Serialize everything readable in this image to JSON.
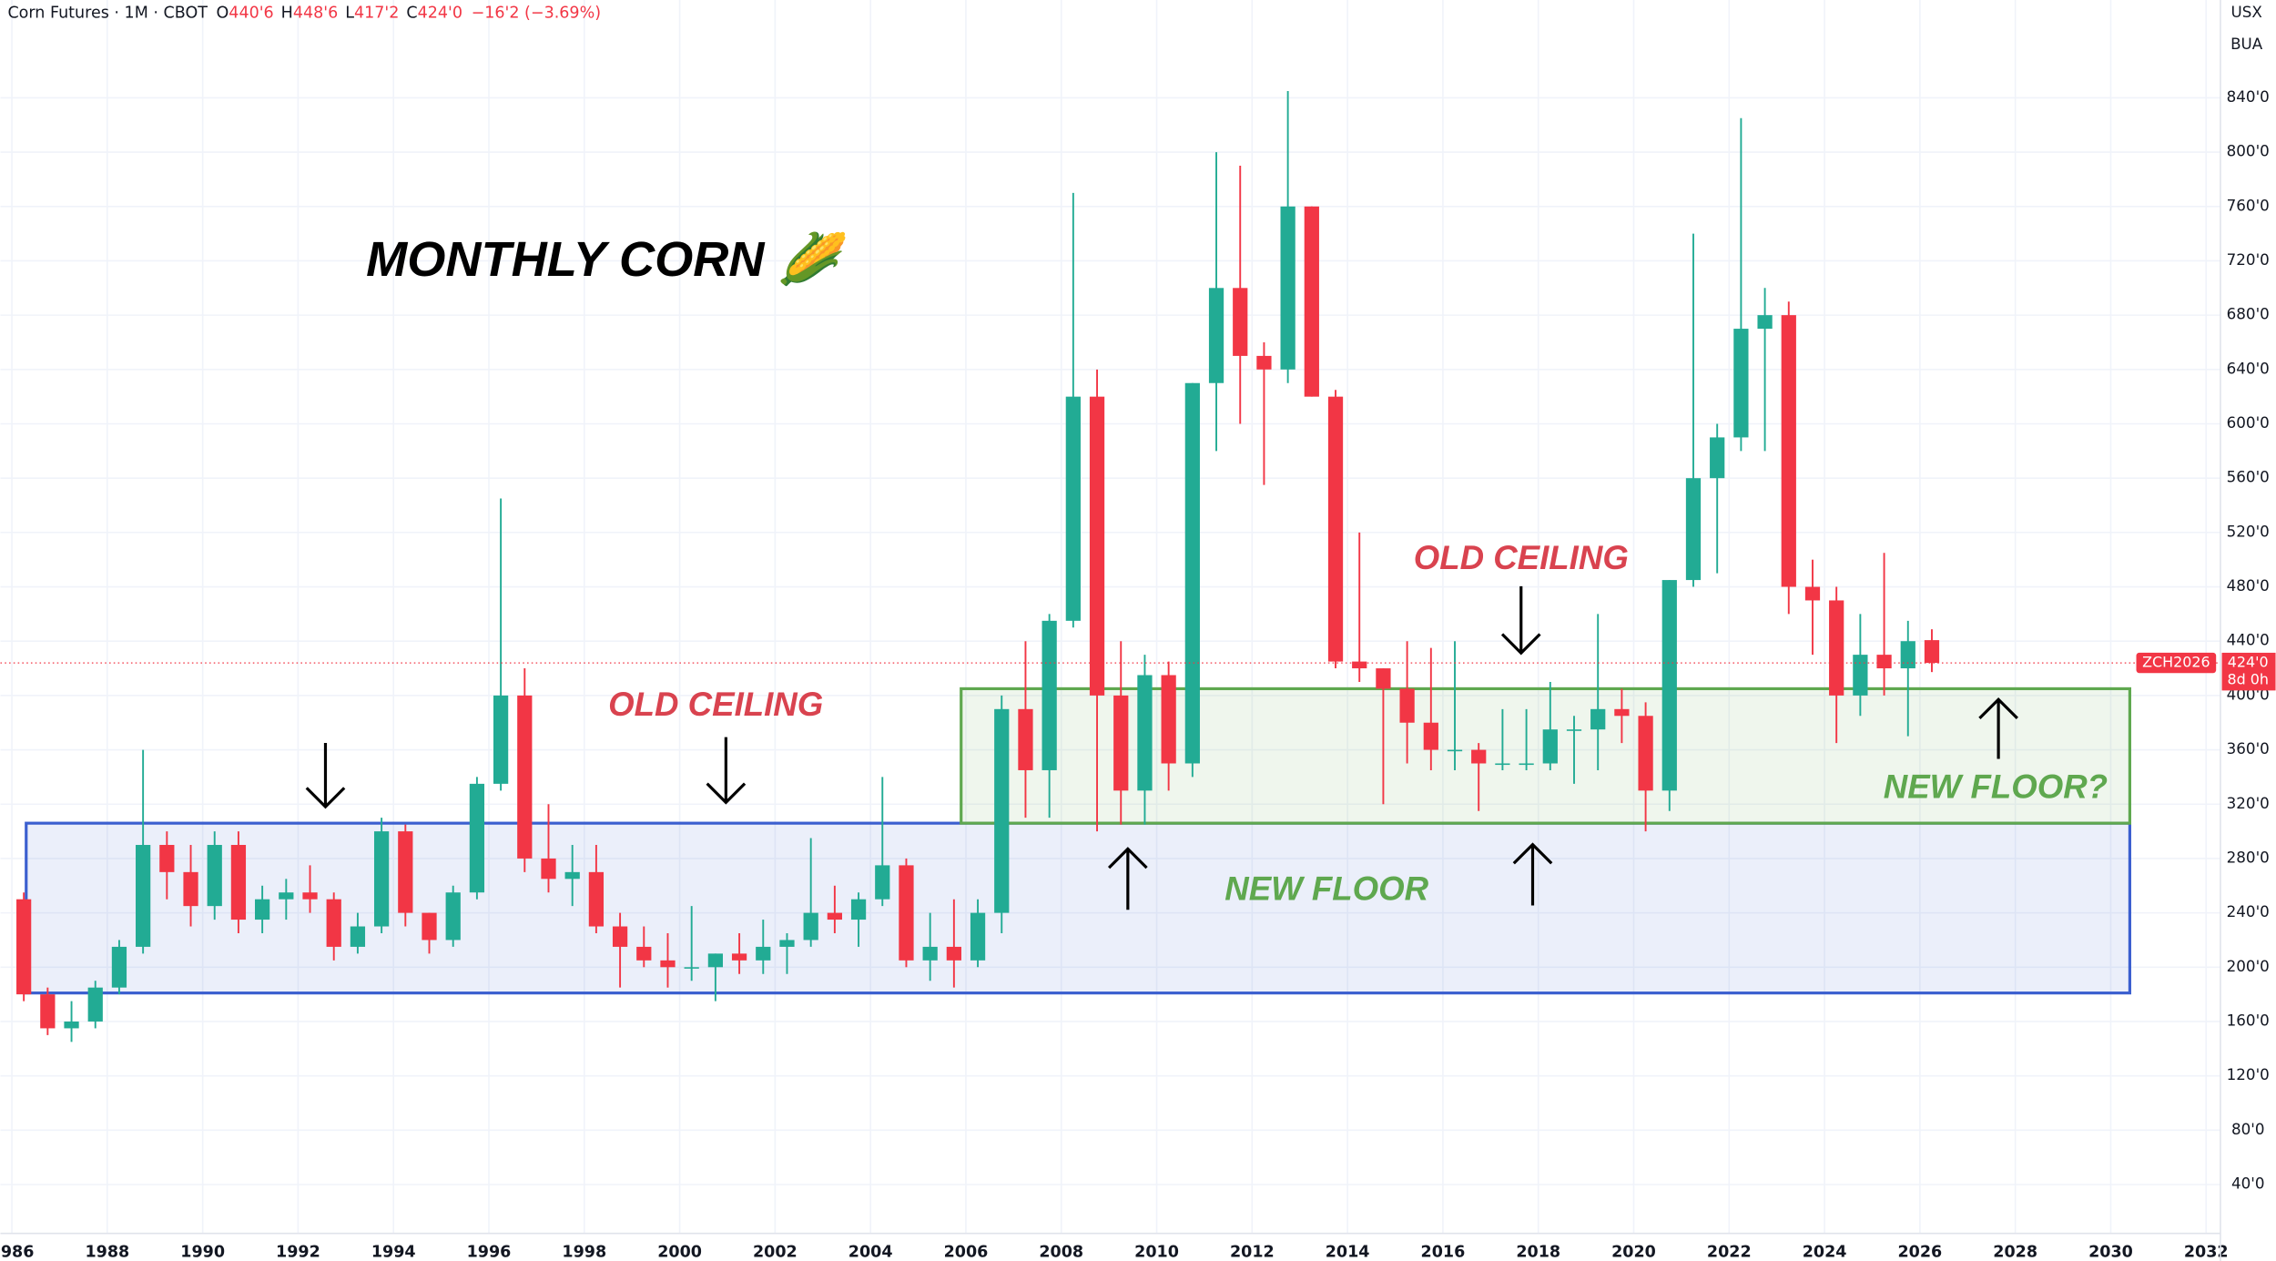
{
  "chart_data": {
    "type": "candlestick",
    "symbol": "Corn Futures · 1M · CBOT",
    "ohlc_header": [
      {
        "key": "O",
        "value": "440'6"
      },
      {
        "key": "H",
        "value": "448'6"
      },
      {
        "key": "L",
        "value": "417'2"
      },
      {
        "key": "C",
        "value": "424'0"
      }
    ],
    "change": "−16'2 (−3.69%)",
    "currency": "USX",
    "unit": "BUA",
    "title": "MONTHLY CORN 🌽",
    "price_tag": {
      "symbol": "ZCH2026",
      "price": "424'0",
      "countdown": "8d 0h"
    },
    "colors": {
      "up": "#22ab94",
      "down": "#f23645"
    },
    "x": [
      1986,
      1986.5,
      1987,
      1987.5,
      1988,
      1988.5,
      1989,
      1989.5,
      1990,
      1990.5,
      1991,
      1991.5,
      1992,
      1992.5,
      1993,
      1993.5,
      1994,
      1994.5,
      1995,
      1995.5,
      1996,
      1996.5,
      1997,
      1997.5,
      1998,
      1998.5,
      1999,
      1999.5,
      2000,
      2000.5,
      2001,
      2001.5,
      2002,
      2002.5,
      2003,
      2003.5,
      2004,
      2004.5,
      2005,
      2005.5,
      2006,
      2006.5,
      2007,
      2007.5,
      2008,
      2008.5,
      2009,
      2009.5,
      2010,
      2010.5,
      2011,
      2011.5,
      2012,
      2012.5,
      2013,
      2013.5,
      2014,
      2014.5,
      2015,
      2015.5,
      2016,
      2016.5,
      2017,
      2017.5,
      2018,
      2018.5,
      2019,
      2019.5,
      2020,
      2020.5,
      2021,
      2021.5,
      2022,
      2022.5,
      2023,
      2023.5,
      2024,
      2024.5,
      2025,
      2025.5,
      2026
    ],
    "open": [
      250,
      180,
      155,
      160,
      185,
      215,
      290,
      270,
      245,
      290,
      235,
      250,
      255,
      250,
      215,
      230,
      300,
      240,
      220,
      255,
      335,
      400,
      280,
      265,
      270,
      230,
      215,
      205,
      200,
      200,
      210,
      205,
      215,
      220,
      240,
      235,
      250,
      275,
      205,
      215,
      205,
      240,
      390,
      345,
      455,
      620,
      400,
      330,
      415,
      350,
      630,
      700,
      650,
      640,
      760,
      620,
      425,
      420,
      405,
      380,
      360,
      360,
      350,
      350,
      350,
      375,
      375,
      390,
      385,
      330,
      485,
      560,
      590,
      670,
      680,
      480,
      470,
      400,
      430,
      420,
      440.75
    ],
    "high": [
      255,
      185,
      175,
      190,
      220,
      360,
      300,
      290,
      300,
      300,
      260,
      265,
      275,
      255,
      240,
      310,
      305,
      240,
      260,
      340,
      545,
      420,
      320,
      290,
      290,
      240,
      230,
      225,
      245,
      210,
      225,
      235,
      225,
      295,
      260,
      255,
      340,
      280,
      240,
      250,
      250,
      400,
      440,
      460,
      770,
      640,
      440,
      430,
      425,
      630,
      800,
      790,
      660,
      845,
      760,
      625,
      520,
      420,
      440,
      435,
      440,
      365,
      390,
      390,
      410,
      385,
      460,
      405,
      395,
      485,
      740,
      600,
      825,
      700,
      690,
      500,
      480,
      460,
      505,
      455,
      448.75
    ],
    "low": [
      175,
      150,
      145,
      155,
      180,
      210,
      250,
      230,
      235,
      225,
      225,
      235,
      240,
      205,
      210,
      225,
      230,
      210,
      215,
      250,
      330,
      270,
      255,
      245,
      225,
      185,
      200,
      185,
      190,
      175,
      195,
      195,
      195,
      215,
      225,
      215,
      245,
      200,
      190,
      185,
      200,
      225,
      310,
      310,
      450,
      300,
      305,
      305,
      330,
      340,
      580,
      600,
      555,
      630,
      620,
      420,
      410,
      320,
      350,
      345,
      345,
      315,
      345,
      345,
      345,
      335,
      345,
      365,
      300,
      315,
      480,
      490,
      580,
      580,
      460,
      430,
      365,
      385,
      400,
      370,
      417.25
    ],
    "close": [
      180,
      155,
      160,
      185,
      215,
      290,
      270,
      245,
      290,
      235,
      250,
      255,
      250,
      215,
      230,
      300,
      240,
      220,
      255,
      335,
      400,
      280,
      265,
      270,
      230,
      215,
      205,
      200,
      200,
      210,
      205,
      215,
      220,
      240,
      235,
      250,
      275,
      205,
      215,
      205,
      240,
      390,
      345,
      455,
      620,
      400,
      330,
      415,
      350,
      630,
      700,
      650,
      640,
      760,
      620,
      425,
      420,
      405,
      380,
      360,
      360,
      350,
      350,
      350,
      375,
      375,
      390,
      385,
      330,
      485,
      560,
      590,
      670,
      680,
      480,
      470,
      400,
      430,
      420,
      440,
      424
    ],
    "xlim": [
      1985.76,
      2032.3
    ],
    "ylim": [
      4,
      912
    ],
    "xticks": [
      1986,
      1988,
      1990,
      1992,
      1994,
      1996,
      1998,
      2000,
      2002,
      2004,
      2006,
      2008,
      2010,
      2012,
      2014,
      2016,
      2018,
      2020,
      2022,
      2024,
      2026,
      2028,
      2030,
      2032
    ],
    "yticks": [
      {
        "value": 40,
        "label": "40'0"
      },
      {
        "value": 80,
        "label": "80'0"
      },
      {
        "value": 120,
        "label": "120'0"
      },
      {
        "value": 160,
        "label": "160'0"
      },
      {
        "value": 200,
        "label": "200'0"
      },
      {
        "value": 240,
        "label": "240'0"
      },
      {
        "value": 280,
        "label": "280'0"
      },
      {
        "value": 320,
        "label": "320'0"
      },
      {
        "value": 360,
        "label": "360'0"
      },
      {
        "value": 400,
        "label": "400'0"
      },
      {
        "value": 440,
        "label": "440'0"
      },
      {
        "value": 480,
        "label": "480'0"
      },
      {
        "value": 520,
        "label": "520'0"
      },
      {
        "value": 560,
        "label": "560'0"
      },
      {
        "value": 600,
        "label": "600'0"
      },
      {
        "value": 640,
        "label": "640'0"
      },
      {
        "value": 680,
        "label": "680'0"
      },
      {
        "value": 720,
        "label": "720'0"
      },
      {
        "value": 760,
        "label": "760'0"
      },
      {
        "value": 800,
        "label": "800'0"
      },
      {
        "value": 840,
        "label": "840'0"
      }
    ],
    "grid": true,
    "zones": [
      {
        "x": [
          1986.3,
          2030.4
        ],
        "y": [
          181,
          306
        ],
        "color": "#3b5fcf"
      },
      {
        "x": [
          2005.9,
          2030.4
        ],
        "y": [
          306,
          405
        ],
        "color": "#5fa84f"
      }
    ],
    "annotations": [
      {
        "text": "OLD CEILING",
        "color": "#d9434f"
      },
      {
        "text": "OLD CEILING",
        "color": "#d9434f"
      },
      {
        "text": "NEW FLOOR",
        "color": "#5fa84f"
      },
      {
        "text": "NEW FLOOR?",
        "color": "#5fa84f"
      }
    ]
  }
}
